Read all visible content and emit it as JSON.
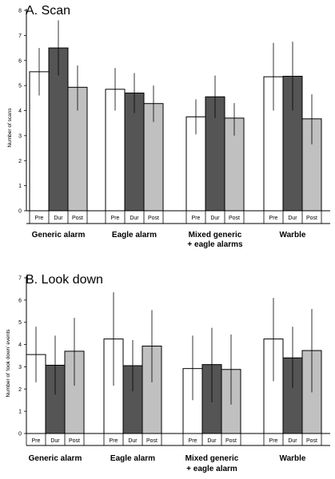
{
  "colors": {
    "pre": "#ffffff",
    "dur": "#555555",
    "post": "#c0c0c0",
    "outline": "#000000"
  },
  "chart_data": [
    {
      "type": "bar",
      "title": "A. Scan",
      "ylabel": "Number of scans",
      "ylim": [
        0,
        8
      ],
      "yticks": [
        "0",
        "1",
        "2",
        "3",
        "4",
        "5",
        "6",
        "7",
        "8"
      ],
      "conditions": [
        "Pre",
        "Dur",
        "Post"
      ],
      "categories": [
        "Generic alarm",
        "Eagle alarm",
        "Mixed generic",
        "Warble"
      ],
      "category_sublabels": [
        "",
        "",
        "+ eagle alarms",
        ""
      ],
      "series": [
        {
          "name": "Pre",
          "values": [
            5.55,
            4.85,
            3.75,
            5.35
          ],
          "err_low": [
            4.6,
            4.0,
            3.05,
            4.0
          ],
          "err_high": [
            6.5,
            5.7,
            4.45,
            6.7
          ]
        },
        {
          "name": "Dur",
          "values": [
            6.5,
            4.7,
            4.55,
            5.37
          ],
          "err_low": [
            5.4,
            3.9,
            3.7,
            4.0
          ],
          "err_high": [
            7.6,
            5.5,
            5.4,
            6.75
          ]
        },
        {
          "name": "Post",
          "values": [
            4.93,
            4.28,
            3.7,
            3.67
          ],
          "err_low": [
            4.0,
            3.55,
            3.0,
            2.65
          ],
          "err_high": [
            5.8,
            5.0,
            4.3,
            4.65
          ]
        }
      ]
    },
    {
      "type": "bar",
      "title": "B. Look down",
      "ylabel": "Number of ‘look down’ events",
      "ylim": [
        0,
        7
      ],
      "yticks": [
        "0",
        "1",
        "2",
        "3",
        "4",
        "5",
        "6",
        "7"
      ],
      "conditions": [
        "Pre",
        "Dur",
        "Post"
      ],
      "categories": [
        "Generic alarm",
        "Eagle alarm",
        "Mixed generic",
        "Warble"
      ],
      "category_sublabels": [
        "",
        "",
        "+ eagle alarm",
        ""
      ],
      "series": [
        {
          "name": "Pre",
          "values": [
            3.55,
            4.25,
            2.92,
            4.25
          ],
          "err_low": [
            2.3,
            2.15,
            1.5,
            2.35
          ],
          "err_high": [
            4.8,
            6.35,
            4.4,
            6.1
          ]
        },
        {
          "name": "Dur",
          "values": [
            3.07,
            3.05,
            3.1,
            3.4
          ],
          "err_low": [
            1.75,
            1.9,
            1.4,
            2.05
          ],
          "err_high": [
            4.4,
            4.2,
            4.75,
            4.8
          ]
        },
        {
          "name": "Post",
          "values": [
            3.7,
            3.93,
            2.88,
            3.73
          ],
          "err_low": [
            2.15,
            2.3,
            1.3,
            1.85
          ],
          "err_high": [
            5.2,
            5.55,
            4.45,
            5.6
          ]
        }
      ]
    }
  ]
}
